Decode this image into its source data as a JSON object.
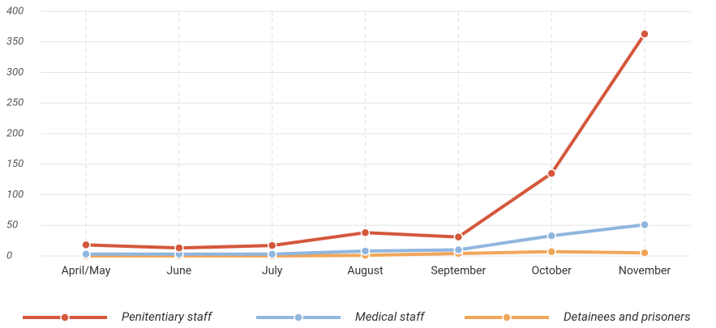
{
  "chart_data": {
    "type": "line",
    "categories": [
      "April/May",
      "June",
      "July",
      "August",
      "September",
      "October",
      "November"
    ],
    "series": [
      {
        "name": "Penitentiary staff",
        "color": "#d4583c",
        "values": [
          18,
          13,
          17,
          38,
          31,
          135,
          363
        ]
      },
      {
        "name": "Medical staff",
        "color": "#90b6de",
        "values": [
          3,
          3,
          3,
          8,
          10,
          33,
          51
        ]
      },
      {
        "name": "Detainees and prisoners",
        "color": "#f0a659",
        "values": [
          0,
          0,
          0,
          1,
          4,
          7,
          5
        ]
      }
    ],
    "ylim": [
      0,
      400
    ],
    "yticks": [
      0,
      50,
      100,
      150,
      200,
      250,
      300,
      350,
      400
    ],
    "grid": true,
    "legend": "bottom"
  }
}
